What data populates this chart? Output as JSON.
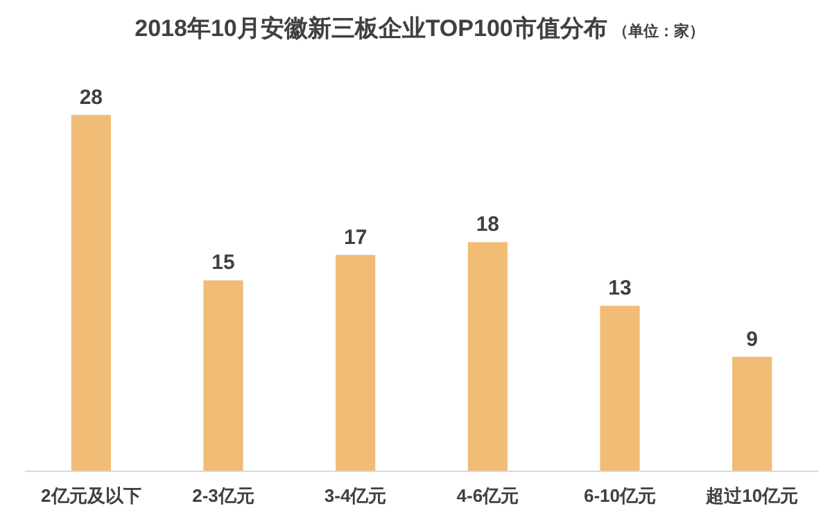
{
  "chart_data": {
    "type": "bar",
    "title": "2018年10月安徽新三板企业TOP100市值分布",
    "subtitle": "（单位：家）",
    "categories": [
      "2亿元及以下",
      "2-3亿元",
      "3-4亿元",
      "4-6亿元",
      "6-10亿元",
      "超过10亿元"
    ],
    "values": [
      28,
      15,
      17,
      18,
      13,
      9
    ],
    "color": "#f0bc76",
    "data_labels": true
  }
}
